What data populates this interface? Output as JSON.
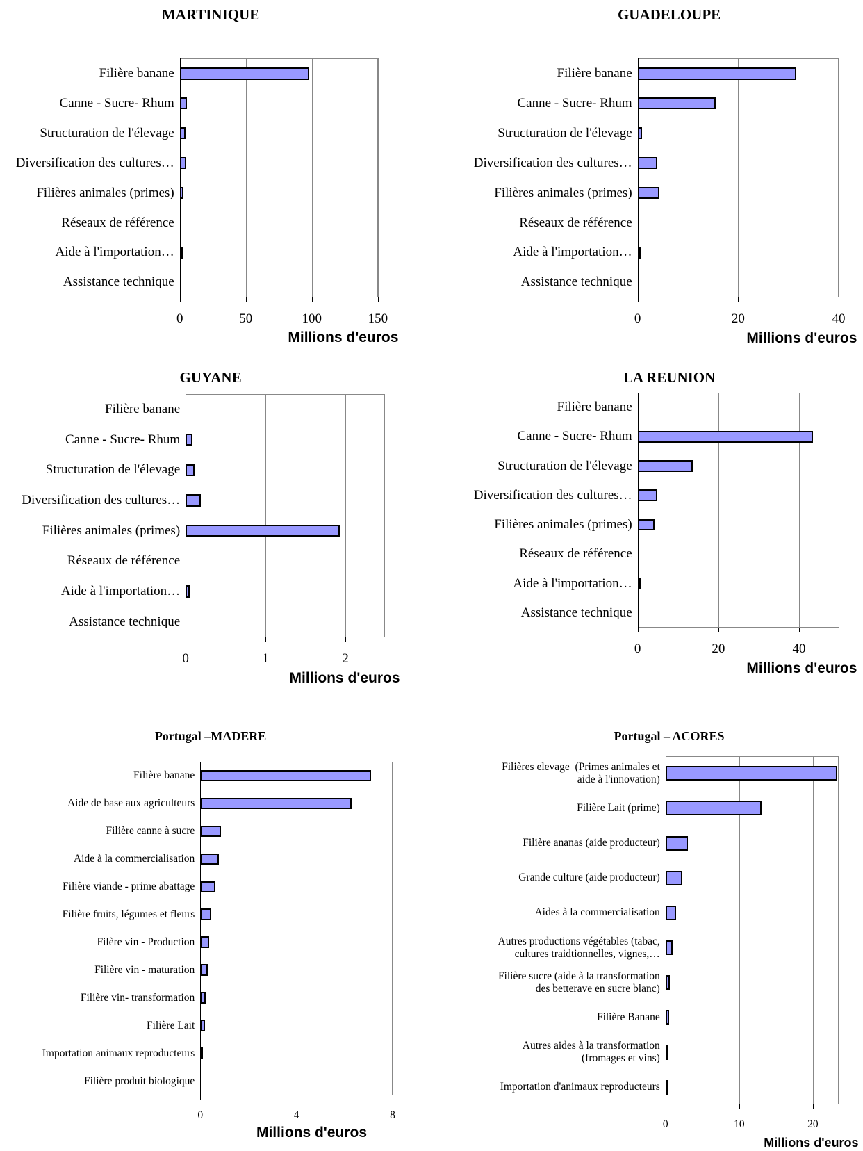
{
  "chart_data": [
    {
      "type": "bar",
      "title": "MARTINIQUE",
      "categories": [
        "Filière banane",
        "Canne - Sucre- Rhum",
        "Structuration de l'élevage",
        "Diversification des cultures…",
        "Filières animales (primes)",
        "Réseaux de référence",
        "Aide à l'importation…",
        "Assistance technique"
      ],
      "values": [
        98,
        5.5,
        4.4,
        5,
        2.8,
        0,
        1,
        0
      ],
      "color": "#9999ff",
      "xlim": [
        0,
        150
      ],
      "xticks": [
        0,
        50,
        100,
        150
      ],
      "xlabel": "Millions d'euros",
      "grid": true
    },
    {
      "type": "bar",
      "title": "GUADELOUPE",
      "categories": [
        "Filière banane",
        "Canne - Sucre- Rhum",
        "Structuration de l'élevage",
        "Diversification des cultures…",
        "Filières animales (primes)",
        "Réseaux de référence",
        "Aide à l'importation…",
        "Assistance technique"
      ],
      "values": [
        31.5,
        15.5,
        0.9,
        3.9,
        4.4,
        0,
        0.4,
        0
      ],
      "color": "#9999ff",
      "xlim": [
        0,
        40
      ],
      "xticks": [
        0,
        20,
        40
      ],
      "xlabel": "Millions d'euros",
      "grid": true
    },
    {
      "type": "bar",
      "title": "GUYANE",
      "categories": [
        "Filière banane",
        "Canne - Sucre- Rhum",
        "Structuration de l'élevage",
        "Diversification des cultures…",
        "Filières animales (primes)",
        "Réseaux de référence",
        "Aide à l'importation…",
        "Assistance technique"
      ],
      "values": [
        0,
        0.09,
        0.11,
        0.19,
        1.93,
        0,
        0.05,
        0
      ],
      "color": "#9999ff",
      "xlim": [
        0,
        2.5
      ],
      "xticks": [
        0,
        1,
        2
      ],
      "xlabel": "Millions d'euros",
      "grid": true
    },
    {
      "type": "bar",
      "title": "LA REUNION",
      "categories": [
        "Filière banane",
        "Canne - Sucre- Rhum",
        "Structuration de l'élevage",
        "Diversification des cultures…",
        "Filières animales (primes)",
        "Réseaux de référence",
        "Aide à l'importation…",
        "Assistance technique"
      ],
      "values": [
        0,
        43.5,
        13.6,
        4.9,
        4.2,
        0,
        0.3,
        0
      ],
      "color": "#9999ff",
      "xlim": [
        0,
        50
      ],
      "xticks": [
        0,
        20,
        40
      ],
      "xlabel": "Millions d'euros",
      "grid": true
    },
    {
      "type": "bar",
      "title": "Portugal –MADERE",
      "categories": [
        "Filière banane",
        "Aide de base aux agriculteurs",
        "Filière canne à sucre",
        "Aide à la commercialisation",
        "Filière viande - prime abattage",
        "Filière fruits, légumes et fleurs",
        "Filère vin - Production",
        "Filière vin - maturation",
        "Filière vin- transformation",
        "Filière Lait",
        "Importation animaux reproducteurs",
        "Filière produit biologique"
      ],
      "values": [
        7.1,
        6.3,
        0.85,
        0.76,
        0.64,
        0.46,
        0.37,
        0.3,
        0.21,
        0.18,
        0.03,
        0
      ],
      "color": "#9999ff",
      "xlim": [
        0,
        8
      ],
      "xticks": [
        0,
        4,
        8
      ],
      "xlabel": "Millions d'euros",
      "grid": true
    },
    {
      "type": "bar",
      "title": "Portugal – ACORES",
      "categories": [
        "Filières elevage  (Primes animales et\naide à l'innovation)",
        "Filière Lait (prime)",
        "Filière ananas (aide producteur)",
        "Grande culture (aide producteur)",
        "Aides à la commercialisation",
        "Autres productions végétables (tabac,\ncultures traidtionnelles, vignes,…",
        "Filière sucre (aide à la transformation\ndes betterave en sucre blanc)",
        "Filière Banane",
        "Autres aides à la transformation\n(fromages et vins)",
        "Importation d'animaux reproducteurs"
      ],
      "values": [
        23.3,
        13,
        3,
        2.3,
        1.4,
        1,
        0.6,
        0.5,
        0.3,
        0.2
      ],
      "color": "#9999ff",
      "xlim": [
        0,
        23.5
      ],
      "xticks": [
        0,
        10,
        20
      ],
      "xlabel": "Millions d'euros",
      "grid": true
    }
  ]
}
